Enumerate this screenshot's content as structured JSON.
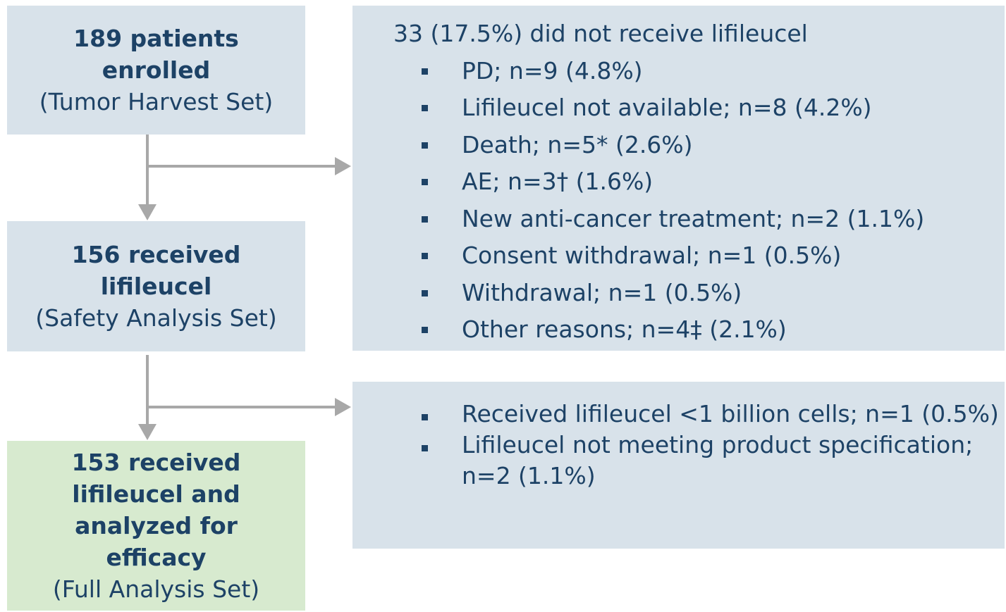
{
  "nodes": [
    {
      "title": "189 patients enrolled",
      "subtitle": "(Tumor Harvest Set)"
    },
    {
      "title": "156 received lifileucel",
      "subtitle": "(Safety Analysis Set)"
    },
    {
      "title": "153 received lifileucel and analyzed for efficacy",
      "subtitle": "(Full Analysis Set)"
    }
  ],
  "exclusions": [
    {
      "heading": "33 (17.5%) did not receive lifileucel",
      "items": [
        "PD; n=9 (4.8%)",
        "Lifileucel not available; n=8 (4.2%)",
        "Death; n=5* (2.6%)",
        "AE; n=3† (1.6%)",
        "New anti-cancer treatment; n=2 (1.1%)",
        "Consent withdrawal; n=1 (0.5%)",
        "Withdrawal; n=1 (0.5%)",
        "Other reasons; n=4‡ (2.1%)"
      ]
    },
    {
      "items": [
        "Received lifileucel <1 billion cells; n=1 (0.5%)",
        "Lifileucel not meeting product specification; n=2 (1.1%)"
      ]
    }
  ]
}
